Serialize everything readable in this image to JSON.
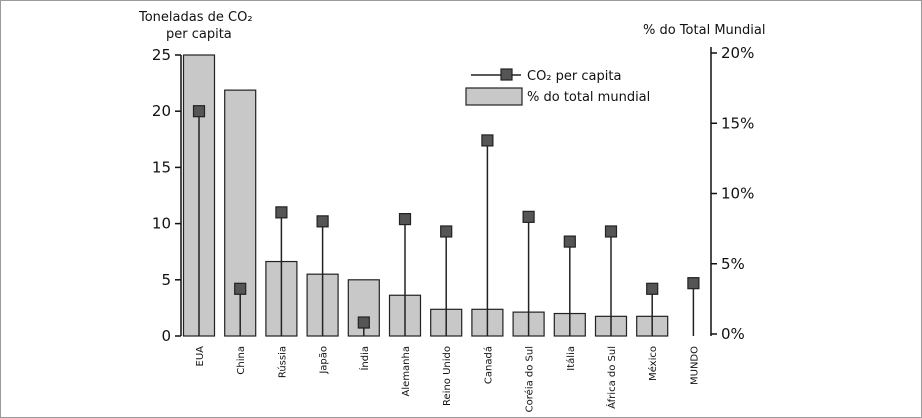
{
  "chart_data": {
    "type": "bar",
    "left_axis_title_line1": "Toneladas de CO₂",
    "left_axis_title_line2": "per capita",
    "right_axis_title": "% do Total Mundial",
    "left_ylim": [
      0,
      25
    ],
    "left_ticks": [
      "0",
      "5",
      "10",
      "15",
      "20",
      "25"
    ],
    "right_ylim": [
      0,
      20
    ],
    "right_ticks": [
      "0%",
      "5%",
      "10%",
      "15%",
      "20%"
    ],
    "categories": [
      "EUA",
      "China",
      "Rússia",
      "Japão",
      "Índia",
      "Alemanha",
      "Reino Unido",
      "Canadá",
      "Coréia do Sul",
      "Itália",
      "África do Sul",
      "México",
      "MUNDO"
    ],
    "series": [
      {
        "name": "CO₂ per capita",
        "type": "lollipop",
        "axis": "left",
        "values": [
          20.0,
          4.2,
          11.0,
          10.2,
          1.2,
          10.4,
          9.3,
          17.4,
          10.6,
          8.4,
          9.3,
          4.2,
          4.7
        ]
      },
      {
        "name": "% do total mundial",
        "type": "bar",
        "axis": "right",
        "values": [
          20.0,
          17.5,
          5.3,
          4.4,
          4.0,
          2.9,
          1.9,
          1.9,
          1.7,
          1.6,
          1.4,
          1.4,
          null
        ]
      }
    ],
    "legend_position": "top-right",
    "grid": false,
    "colors": {
      "bar_fill": "#c8c8c8",
      "bar_stroke": "#222222",
      "marker_fill": "#555555",
      "line": "#222222"
    }
  }
}
